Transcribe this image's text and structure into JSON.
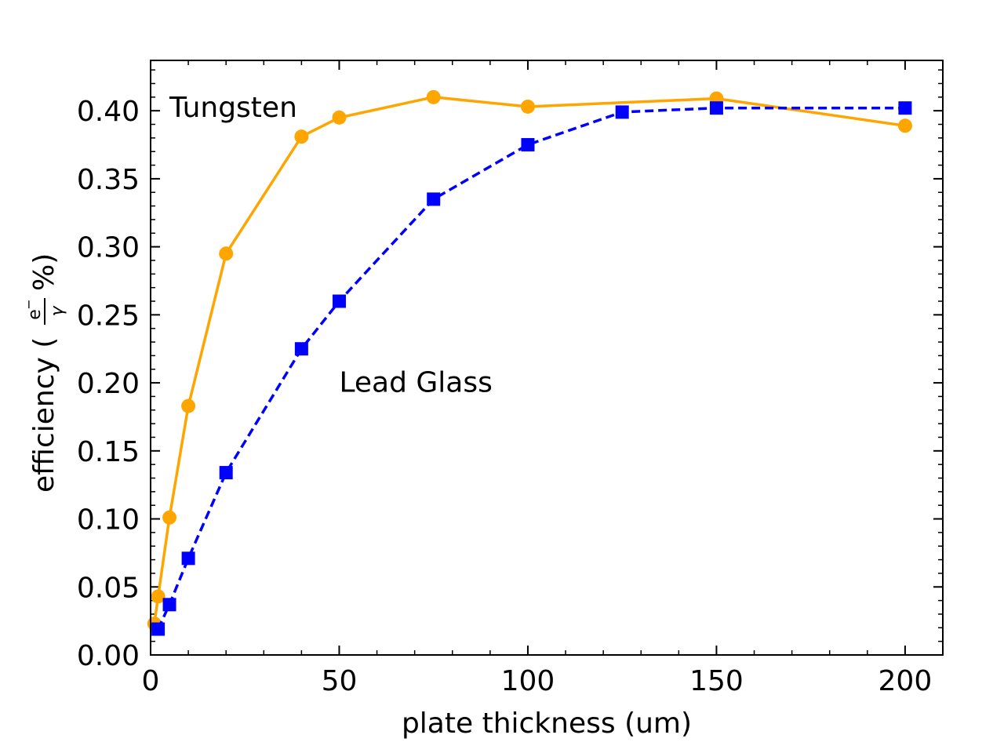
{
  "chart_data": {
    "type": "line",
    "title": "",
    "xlabel": "plate thickness (um)",
    "ylabel": "efficiency (",
    "ylabel_fraction": {
      "numerator": "e",
      "superscript": "−",
      "denominator": "γ",
      "suffix": "%)"
    },
    "xlim": [
      0,
      210
    ],
    "ylim": [
      0,
      0.437
    ],
    "xticks": [
      0,
      50,
      100,
      150,
      200
    ],
    "xtick_labels": [
      "0",
      "50",
      "100",
      "150",
      "200"
    ],
    "yticks": [
      0,
      0.05,
      0.1,
      0.15,
      0.2,
      0.25,
      0.3,
      0.35,
      0.4
    ],
    "ytick_labels": [
      "0.00",
      "0.05",
      "0.10",
      "0.15",
      "0.20",
      "0.25",
      "0.30",
      "0.35",
      "0.40"
    ],
    "grid": false,
    "series": [
      {
        "name": "Tungsten",
        "color": "#ffa500",
        "marker": "circle",
        "linestyle": "solid",
        "x": [
          1,
          2,
          5,
          10,
          20,
          40,
          50,
          75,
          100,
          150,
          200
        ],
        "values": [
          0.023,
          0.043,
          0.101,
          0.183,
          0.295,
          0.381,
          0.395,
          0.41,
          0.403,
          0.409,
          0.389
        ],
        "errors": [
          0.002,
          0.002,
          0.003,
          0.003,
          0.003,
          0.004,
          0.004,
          0.005,
          0.004,
          0.005,
          0.004
        ]
      },
      {
        "name": "Lead Glass",
        "color": "#0000ff",
        "marker": "square",
        "linestyle": "dashed",
        "x": [
          2,
          5,
          10,
          20,
          40,
          50,
          75,
          100,
          125,
          150,
          200
        ],
        "values": [
          0.019,
          0.037,
          0.071,
          0.134,
          0.225,
          0.26,
          0.335,
          0.375,
          0.399,
          0.402,
          0.402
        ],
        "errors": [
          0.002,
          0.002,
          0.003,
          0.003,
          0.003,
          0.003,
          0.004,
          0.004,
          0.004,
          0.004,
          0.004
        ]
      }
    ],
    "annotations": [
      {
        "text": "Tungsten",
        "x": 5,
        "y": 0.403
      },
      {
        "text": "Lead Glass",
        "x": 50,
        "y": 0.201
      }
    ]
  }
}
